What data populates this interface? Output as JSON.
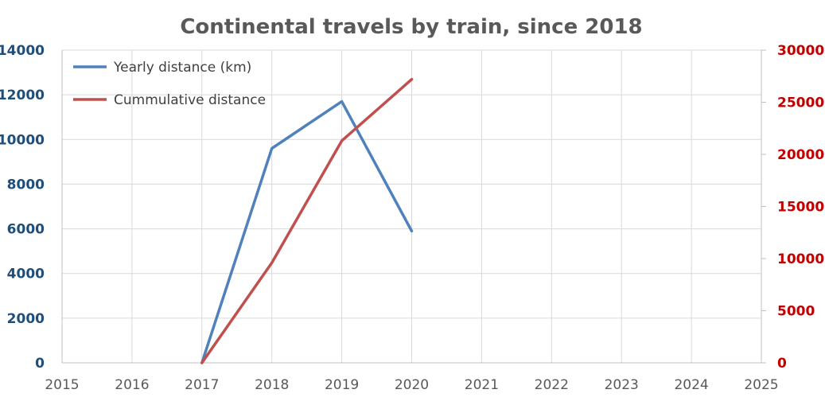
{
  "chart_data": {
    "type": "line",
    "title": "Continental travels by train, since 2018",
    "xlabel": "",
    "ylabel": "",
    "y2label": "",
    "x_ticks": [
      "2015",
      "2016",
      "2017",
      "2018",
      "2019",
      "2020",
      "2021",
      "2022",
      "2023",
      "2024",
      "2025"
    ],
    "xlim": [
      2015,
      2025
    ],
    "ylim": [
      0,
      14000
    ],
    "y_ticks": [
      "0",
      "2000",
      "4000",
      "6000",
      "8000",
      "10000",
      "12000",
      "14000"
    ],
    "y2lim": [
      0,
      30000
    ],
    "y2_ticks": [
      "0",
      "5000",
      "10000",
      "15000",
      "20000",
      "25000",
      "30000"
    ],
    "grid": true,
    "legend_position": "top-left",
    "series": [
      {
        "name": "Yearly distance (km)",
        "axis": "left",
        "color": "#4f81bd",
        "x": [
          2017,
          2018,
          2019,
          2020
        ],
        "values": [
          0,
          9600,
          11700,
          5900
        ]
      },
      {
        "name": "Cummulative distance",
        "axis": "right",
        "color": "#c0504d",
        "x": [
          2017,
          2018,
          2019,
          2020
        ],
        "values": [
          0,
          9600,
          21300,
          27200
        ]
      }
    ]
  }
}
